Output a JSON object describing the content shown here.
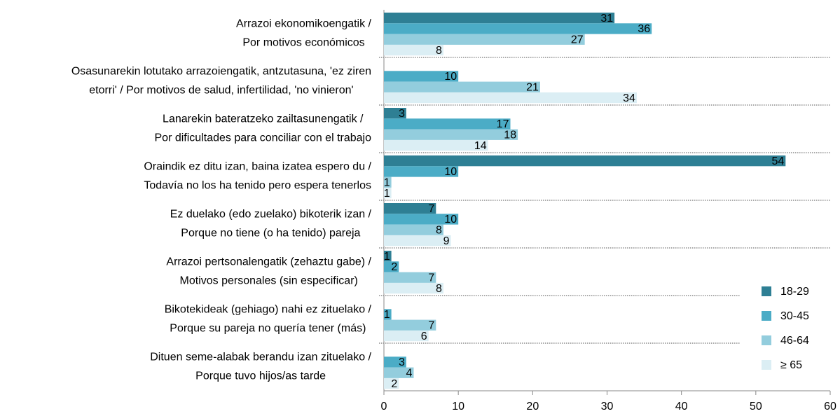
{
  "chart_data": {
    "type": "barh",
    "categories": [
      [
        "Arrazoi ekonomikoengatik /",
        "Por motivos económicos"
      ],
      [
        "Osasunarekin lotutako arrazoiengatik, antzutasuna, 'ez ziren",
        "etorri' / Por motivos de salud, infertilidad, 'no vinieron'"
      ],
      [
        "Lanarekin bateratzeko zailtasunengatik /",
        "Por dificultades para conciliar con el trabajo"
      ],
      [
        "Oraindik ez ditu izan, baina izatea espero du /",
        "Todavía no los ha tenido pero espera tenerlos"
      ],
      [
        "Ez duelako (edo zuelako) bikoterik izan /",
        "Porque no tiene (o ha tenido) pareja"
      ],
      [
        "Arrazoi pertsonalengatik (zehaztu gabe) /",
        "Motivos personales (sin especificar)"
      ],
      [
        "Bikotekideak (gehiago) nahi ez zituelako /",
        "Porque su pareja no quería tener (más)"
      ],
      [
        "Dituen seme-alabak berandu izan zituelako /",
        "Porque tuvo hijos/as tarde"
      ]
    ],
    "series": [
      {
        "name": "18-29",
        "color": "#2e7f94",
        "label_color": "#ffffff",
        "values": [
          31,
          null,
          3,
          54,
          7,
          1,
          null,
          null
        ]
      },
      {
        "name": "30-45",
        "color": "#4bacc6",
        "label_color": "#000000",
        "values": [
          36,
          10,
          17,
          10,
          10,
          2,
          1,
          3
        ]
      },
      {
        "name": "46-64",
        "color": "#93cddd",
        "label_color": "#000000",
        "values": [
          27,
          21,
          18,
          1,
          8,
          7,
          7,
          4
        ]
      },
      {
        "name": "≥ 65",
        "color": "#dbeef4",
        "label_color": "#000000",
        "values": [
          8,
          34,
          14,
          1,
          9,
          8,
          6,
          2
        ]
      }
    ],
    "xlim": [
      0,
      60
    ],
    "xticks": [
      0,
      10,
      20,
      30,
      40,
      50,
      60
    ],
    "legend": "lower right"
  }
}
